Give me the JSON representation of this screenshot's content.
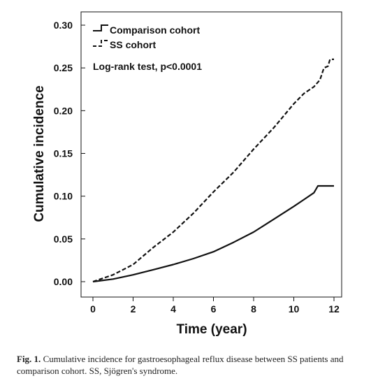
{
  "chart_data": {
    "type": "line",
    "title": "",
    "xlabel": "Time (year)",
    "ylabel": "Cumulative incidence",
    "xlim": [
      0,
      12
    ],
    "ylim": [
      0,
      0.3
    ],
    "xticks": [
      "0",
      "2",
      "4",
      "6",
      "8",
      "10",
      "12"
    ],
    "yticks": [
      "0.00",
      "0.05",
      "0.10",
      "0.15",
      "0.20",
      "0.25",
      "0.30"
    ],
    "grid": false,
    "legend_position": "top-left",
    "annotation": "Log-rank test, p<0.0001",
    "series": [
      {
        "name": "Comparison cohort",
        "style": "solid",
        "x": [
          0,
          1,
          2,
          3,
          4,
          5,
          6,
          7,
          8,
          9,
          10,
          10.5,
          11,
          11.2,
          12
        ],
        "y": [
          0,
          0.003,
          0.008,
          0.014,
          0.02,
          0.027,
          0.035,
          0.046,
          0.058,
          0.073,
          0.088,
          0.096,
          0.104,
          0.112,
          0.112
        ]
      },
      {
        "name": "SS cohort",
        "style": "dashed",
        "x": [
          0,
          1,
          2,
          3,
          4,
          5,
          6,
          7,
          8,
          9,
          10,
          10.5,
          11,
          11.3,
          11.5,
          11.7,
          11.8,
          12
        ],
        "y": [
          0,
          0.008,
          0.02,
          0.04,
          0.058,
          0.08,
          0.105,
          0.128,
          0.155,
          0.18,
          0.208,
          0.22,
          0.228,
          0.236,
          0.25,
          0.252,
          0.26,
          0.26
        ]
      }
    ]
  },
  "caption": {
    "label": "Fig. 1.",
    "text": " Cumulative incidence for gastroesophageal reflux disease between SS patients and comparison cohort. SS, Sjögren's syndrome."
  }
}
